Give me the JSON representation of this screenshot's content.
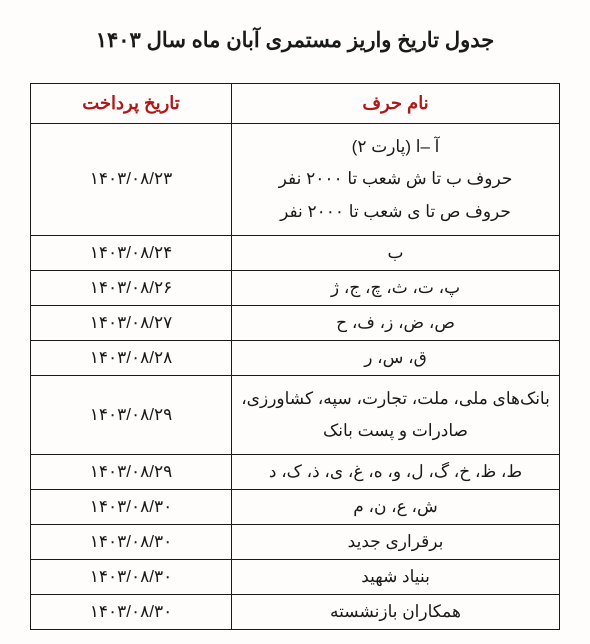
{
  "title": "جدول تاریخ واریز مستمری آبان ماه سال ۱۴۰۳",
  "columns": {
    "letter": "نام حرف",
    "date": "تاریخ پرداخت"
  },
  "rows": [
    {
      "letter": "آ –ا (پارت ۲)\nحروف ب تا ش شعب تا ۲۰۰۰ نفر\nحروف ص تا ی شعب تا ۲۰۰۰ نفر",
      "date": "۱۴۰۳/۰۸/۲۳",
      "multiline": true
    },
    {
      "letter": "ب",
      "date": "۱۴۰۳/۰۸/۲۴"
    },
    {
      "letter": "پ، ت، ث، چ، ج، ژ",
      "date": "۱۴۰۳/۰۸/۲۶"
    },
    {
      "letter": "ص، ض، ز، ف، ح",
      "date": "۱۴۰۳/۰۸/۲۷"
    },
    {
      "letter": "ق، س، ر",
      "date": "۱۴۰۳/۰۸/۲۸"
    },
    {
      "letter": "بانک‌های ملی، ملت، تجارت، سپه، کشاورزی، صادرات و پست بانک",
      "date": "۱۴۰۳/۰۸/۲۹",
      "multiline": true
    },
    {
      "letter": "ط، ظ، خ، گ، ل، و، ه، غ، ی، ذ، ک، د",
      "date": "۱۴۰۳/۰۸/۲۹"
    },
    {
      "letter": "ش، ع، ن، م",
      "date": "۱۴۰۳/۰۸/۳۰"
    },
    {
      "letter": "برقراری جدید",
      "date": "۱۴۰۳/۰۸/۳۰"
    },
    {
      "letter": "بنیاد شهید",
      "date": "۱۴۰۳/۰۸/۳۰"
    },
    {
      "letter": "همکاران بازنشسته",
      "date": "۱۴۰۳/۰۸/۳۰"
    }
  ],
  "style": {
    "header_color": "#b01818",
    "border_color": "#1a1a1a",
    "text_color": "#1a1a1a",
    "background": "#fefdfb",
    "title_fontsize": 21,
    "header_fontsize": 18,
    "cell_fontsize": 17
  }
}
